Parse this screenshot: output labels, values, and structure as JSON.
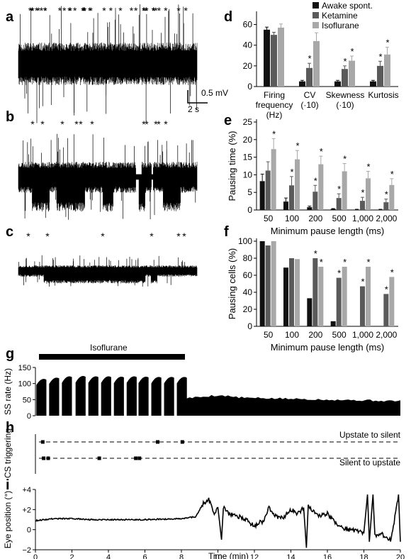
{
  "colors": {
    "awake": "#111111",
    "ketamine": "#5a5a5a",
    "isoflurane": "#a8a8a8",
    "trace": "#000000"
  },
  "panels": {
    "a": {
      "label": "a",
      "scale_mv": "0.5 mV",
      "scale_s": "2 s"
    },
    "b": {
      "label": "b"
    },
    "c": {
      "label": "c"
    },
    "d": {
      "label": "d"
    },
    "e": {
      "label": "e"
    },
    "f": {
      "label": "f"
    },
    "g": {
      "label": "g",
      "bar_label": "Isoflurane"
    },
    "h": {
      "label": "h",
      "upper_label": "Upstate to silent",
      "lower_label": "Silent to upstate"
    },
    "i": {
      "label": "i"
    }
  },
  "chart_data": [
    {
      "id": "d",
      "type": "bar",
      "categories": [
        "Firing frequency (Hz)",
        "CV (·10)",
        "Skewness (·10)",
        "Kurtosis"
      ],
      "category_lines": [
        [
          "Firing",
          "frequency",
          "(Hz)"
        ],
        [
          "CV",
          "(·10)"
        ],
        [
          "Skewness",
          "(·10)"
        ],
        [
          "Kurtosis"
        ]
      ],
      "series": [
        {
          "name": "Awake spont.",
          "values": [
            55,
            5,
            5,
            5
          ],
          "errors": [
            2.5,
            1,
            1,
            1
          ],
          "significant": [
            false,
            false,
            false,
            false
          ]
        },
        {
          "name": "Ketamine",
          "values": [
            50,
            18,
            17,
            20
          ],
          "errors": [
            2.5,
            4.5,
            3,
            4.5
          ],
          "significant": [
            false,
            true,
            true,
            true
          ]
        },
        {
          "name": "Isoflurane",
          "values": [
            57,
            44,
            25,
            31
          ],
          "errors": [
            3.5,
            8,
            4.5,
            7
          ],
          "significant": [
            false,
            true,
            true,
            true
          ]
        }
      ],
      "yticks": [
        "0",
        "20",
        "40",
        "60"
      ],
      "ylim": [
        0,
        70
      ],
      "legend_position": "top-right"
    },
    {
      "id": "e",
      "type": "bar",
      "categories": [
        "50",
        "100",
        "200",
        "500",
        "1,000",
        "2,000"
      ],
      "series": [
        {
          "name": "Awake spont.",
          "values": [
            8.2,
            2.4,
            0.8,
            0.3,
            0.1,
            0.1
          ],
          "errors": [
            2,
            1,
            0.3,
            0.1,
            0.1,
            0.1
          ],
          "significant": [
            false,
            false,
            false,
            false,
            false,
            false
          ]
        },
        {
          "name": "Ketamine",
          "values": [
            11.2,
            7,
            5.2,
            3.4,
            2.6,
            2.2
          ],
          "errors": [
            2.5,
            2.5,
            1.8,
            1.2,
            1,
            0.9
          ],
          "significant": [
            false,
            true,
            true,
            true,
            true,
            true
          ]
        },
        {
          "name": "Isoflurane",
          "values": [
            17.3,
            14.4,
            13,
            11,
            9,
            7.1
          ],
          "errors": [
            3,
            2.5,
            2.3,
            2.2,
            2,
            1.8
          ],
          "significant": [
            true,
            true,
            true,
            true,
            true,
            true
          ]
        }
      ],
      "ylabel": "Pausing time (%)",
      "xlabel": "Minimum pause length (ms)",
      "yticks": [
        "0",
        "5",
        "10",
        "15",
        "20",
        "25"
      ],
      "ylim": [
        0,
        25
      ]
    },
    {
      "id": "f",
      "type": "bar",
      "categories": [
        "50",
        "100",
        "200",
        "500",
        "1,000",
        "2,000"
      ],
      "series": [
        {
          "name": "Awake spont.",
          "values": [
            100,
            69,
            33,
            6,
            0,
            0
          ],
          "significant": [
            false,
            false,
            false,
            false,
            false,
            false
          ]
        },
        {
          "name": "Ketamine",
          "values": [
            95,
            80,
            80,
            57,
            47,
            38
          ],
          "significant": [
            false,
            false,
            true,
            true,
            true,
            true
          ]
        },
        {
          "name": "Isoflurane",
          "values": [
            100,
            79,
            70,
            70,
            70,
            58
          ],
          "significant": [
            false,
            false,
            true,
            true,
            true,
            true
          ]
        }
      ],
      "ylabel": "Pausing cells (%)",
      "xlabel": "Minimum pause length (ms)",
      "yticks": [
        "0",
        "20",
        "40",
        "60",
        "80",
        "100"
      ],
      "ylim": [
        0,
        100
      ]
    },
    {
      "id": "g",
      "type": "area",
      "ylabel": "SS rate (Hz)",
      "yticks": [
        "0",
        "50",
        "100",
        "150"
      ],
      "ylim": [
        0,
        150
      ],
      "isoflurane_end_min": 8.1,
      "bursts_min": [
        0.05,
        0.75,
        1.45,
        2.2,
        2.9,
        3.6,
        4.3,
        5.0,
        5.65,
        6.35,
        7.05,
        7.75
      ],
      "burst_peak_hz": [
        112,
        116,
        120,
        121,
        120,
        120,
        119,
        120,
        119,
        118,
        118,
        118
      ],
      "burst_width_min": 0.55,
      "recovery_level_hz": 55,
      "xlim": [
        0,
        20
      ]
    },
    {
      "id": "h",
      "type": "scatter",
      "ylabel": "CS triggering",
      "upstate_to_silent_min": [
        0.4,
        6.7,
        8.05
      ],
      "silent_to_upstate_min": [
        0.45,
        0.7,
        3.5,
        5.5,
        5.7
      ],
      "xlim": [
        0,
        20
      ]
    },
    {
      "id": "i",
      "type": "line",
      "ylabel": "Eye position (°)",
      "xlabel": "Time (min)",
      "yticks": [
        "−2",
        "0",
        "+2",
        "+4"
      ],
      "ylim": [
        -2,
        4
      ],
      "xticks": [
        "0",
        "2",
        "4",
        "6",
        "8",
        "10",
        "12",
        "14",
        "16",
        "18",
        "20"
      ],
      "xlim": [
        0,
        20
      ],
      "points": [
        [
          0,
          0.9
        ],
        [
          0.5,
          1.0
        ],
        [
          1,
          1.1
        ],
        [
          2,
          1.1
        ],
        [
          3,
          1.0
        ],
        [
          4,
          1.0
        ],
        [
          5,
          1.0
        ],
        [
          6,
          1.0
        ],
        [
          7,
          1.05
        ],
        [
          8,
          1.1
        ],
        [
          8.8,
          1.3
        ],
        [
          9.2,
          2.6
        ],
        [
          9.5,
          3.0
        ],
        [
          9.8,
          1.6
        ],
        [
          10.0,
          2.2
        ],
        [
          10.2,
          -1.0
        ],
        [
          10.3,
          2.3
        ],
        [
          10.6,
          1.6
        ],
        [
          11.0,
          1.4
        ],
        [
          11.5,
          1.0
        ],
        [
          12.0,
          0.4
        ],
        [
          12.5,
          0.9
        ],
        [
          12.8,
          2.2
        ],
        [
          13.2,
          1.3
        ],
        [
          13.6,
          1.2
        ],
        [
          14.0,
          2.0
        ],
        [
          14.4,
          1.6
        ],
        [
          14.7,
          2.2
        ],
        [
          14.85,
          -1.8
        ],
        [
          14.95,
          2.5
        ],
        [
          15.4,
          1.4
        ],
        [
          16.0,
          1.6
        ],
        [
          16.5,
          0.5
        ],
        [
          17.0,
          0.1
        ],
        [
          17.5,
          -0.1
        ],
        [
          18.0,
          -0.3
        ],
        [
          18.2,
          3.5
        ],
        [
          18.3,
          -1.2
        ],
        [
          18.5,
          3.5
        ],
        [
          18.6,
          -0.5
        ],
        [
          19.0,
          -0.5
        ],
        [
          19.5,
          -1.0
        ],
        [
          19.9,
          3.5
        ],
        [
          20,
          -1.2
        ]
      ]
    }
  ],
  "traces": {
    "a": {
      "stars": 36,
      "seed": 11
    },
    "b": {
      "stars": 11,
      "seed": 23
    },
    "c": {
      "stars": 6,
      "seed": 37
    }
  }
}
